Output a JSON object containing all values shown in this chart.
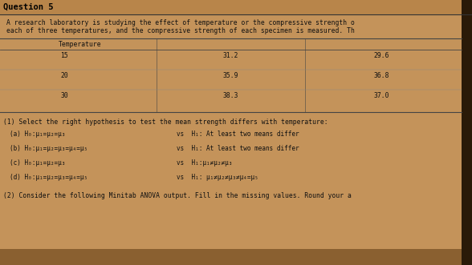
{
  "title": "Question 5",
  "bg_color": "#c4935a",
  "table_bg": "#c8a070",
  "line_color": "#555555",
  "text_color": "#111111",
  "intro_line1": "A research laboratory is studying the effect of temperature or the compressive strength o",
  "intro_line2": "each of three temperatures, and the compressive strength of each specimen is measured. Th",
  "table_header": "Temperature",
  "table_rows": [
    [
      "15",
      "31.2",
      "29.6"
    ],
    [
      "20",
      "35.9",
      "36.8"
    ],
    [
      "30",
      "38.3",
      "37.0"
    ]
  ],
  "part1_label": "(1) Select the right hypothesis to test the mean strength differs with temperature:",
  "hyp_a_left": "(a) H₀:μ₁=μ₂=μ₃",
  "hyp_a_vs": "vs  H₁: At least two means differ",
  "hyp_b_left": "(b) H₀:μ₁=μ₂=μ₃=μ₄=μ₅",
  "hyp_b_vs": "vs  H₁: At least two means differ",
  "hyp_c_left": "(c) H₀:μ₁=μ₂=μ₃",
  "hyp_c_vs": "vs  H₁:μ₁≠μ₂≠μ₃",
  "hyp_d_left": "(d) H₀:μ₁=μ₂=μ₃=μ₄=μ₅",
  "hyp_d_vs": "vs  H₁: μ₁≠μ₂≠μ₃≠μ₄=μ₅",
  "part2_label": "(2) Consider the following Minitab ANOVA output. Fill in the missing values. Round your a",
  "figsize": [
    5.88,
    3.31
  ],
  "dpi": 100
}
